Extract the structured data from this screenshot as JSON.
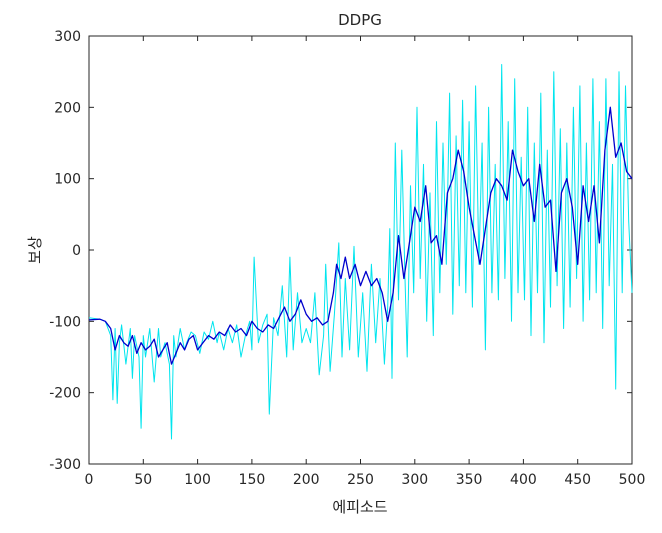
{
  "figure": {
    "title": "DDPG",
    "xlabel": "에피소드",
    "ylabel": "보상"
  },
  "colors": {
    "raw": "#00e5ee",
    "smoothed": "#0000cd",
    "axis": "#262626",
    "background": "#ffffff"
  },
  "chart_data": {
    "type": "line",
    "title": "DDPG",
    "xlabel": "에피소드",
    "ylabel": "보상",
    "xlim": [
      0,
      500
    ],
    "ylim": [
      -300,
      300
    ],
    "xticks": [
      0,
      50,
      100,
      150,
      200,
      250,
      300,
      350,
      400,
      450,
      500
    ],
    "yticks": [
      -300,
      -200,
      -100,
      0,
      100,
      200,
      300
    ],
    "grid": false,
    "legend": "none",
    "series": [
      {
        "role": "raw",
        "color": "#00e5ee",
        "x": [
          0,
          10,
          15,
          20,
          22,
          24,
          26,
          28,
          30,
          34,
          38,
          40,
          42,
          46,
          48,
          50,
          52,
          56,
          60,
          64,
          66,
          70,
          74,
          76,
          78,
          80,
          84,
          88,
          90,
          94,
          98,
          102,
          106,
          110,
          114,
          118,
          120,
          124,
          128,
          132,
          136,
          140,
          144,
          148,
          150,
          152,
          156,
          160,
          164,
          166,
          170,
          174,
          178,
          182,
          185,
          188,
          192,
          196,
          200,
          204,
          208,
          212,
          216,
          218,
          222,
          226,
          230,
          233,
          236,
          240,
          244,
          248,
          252,
          256,
          260,
          264,
          268,
          272,
          275,
          277,
          279,
          282,
          285,
          288,
          291,
          293,
          296,
          299,
          302,
          305,
          308,
          311,
          314,
          317,
          320,
          323,
          326,
          329,
          332,
          335,
          338,
          341,
          344,
          347,
          350,
          353,
          356,
          359,
          362,
          365,
          368,
          371,
          374,
          377,
          380,
          383,
          386,
          389,
          392,
          395,
          398,
          401,
          404,
          407,
          410,
          413,
          416,
          419,
          422,
          425,
          428,
          431,
          434,
          437,
          440,
          443,
          446,
          449,
          452,
          455,
          458,
          461,
          464,
          467,
          470,
          473,
          476,
          479,
          482,
          485,
          488,
          491,
          494,
          497,
          500
        ],
        "values": [
          -95,
          -97,
          -100,
          -120,
          -210,
          -110,
          -215,
          -130,
          -105,
          -160,
          -110,
          -180,
          -120,
          -150,
          -250,
          -120,
          -150,
          -110,
          -185,
          -110,
          -150,
          -130,
          -160,
          -265,
          -120,
          -150,
          -110,
          -140,
          -130,
          -115,
          -120,
          -145,
          -115,
          -125,
          -100,
          -130,
          -115,
          -140,
          -110,
          -130,
          -105,
          -150,
          -120,
          -100,
          -140,
          -10,
          -130,
          -105,
          -90,
          -230,
          -95,
          -120,
          -50,
          -150,
          -10,
          -140,
          -60,
          -130,
          -110,
          -130,
          -60,
          -175,
          -120,
          -20,
          -170,
          -90,
          10,
          -150,
          -40,
          -140,
          5,
          -150,
          -60,
          -170,
          -20,
          -130,
          -40,
          -160,
          -80,
          30,
          -180,
          150,
          -70,
          140,
          -40,
          -150,
          90,
          -60,
          200,
          -40,
          120,
          -100,
          80,
          -120,
          180,
          -60,
          150,
          -20,
          220,
          -90,
          160,
          -50,
          210,
          -60,
          180,
          -80,
          230,
          -20,
          150,
          -140,
          200,
          -60,
          120,
          -70,
          260,
          -40,
          180,
          -100,
          240,
          -60,
          130,
          -70,
          200,
          -120,
          150,
          -60,
          220,
          -130,
          140,
          -80,
          250,
          -50,
          170,
          -110,
          150,
          -80,
          200,
          -40,
          230,
          -100,
          150,
          -70,
          240,
          -60,
          180,
          -110,
          240,
          -50,
          120,
          -195,
          250,
          -60,
          230,
          40,
          -60
        ]
      },
      {
        "role": "smoothed",
        "color": "#0000cd",
        "x": [
          0,
          10,
          15,
          20,
          24,
          28,
          32,
          36,
          40,
          44,
          48,
          52,
          56,
          60,
          64,
          68,
          72,
          76,
          80,
          84,
          88,
          92,
          96,
          100,
          105,
          110,
          115,
          120,
          125,
          130,
          135,
          140,
          145,
          150,
          155,
          160,
          165,
          170,
          175,
          180,
          185,
          190,
          195,
          200,
          205,
          210,
          215,
          220,
          225,
          228,
          232,
          236,
          240,
          245,
          250,
          255,
          260,
          265,
          270,
          275,
          280,
          285,
          290,
          295,
          300,
          305,
          310,
          315,
          320,
          325,
          330,
          335,
          340,
          345,
          350,
          355,
          360,
          365,
          370,
          375,
          380,
          385,
          390,
          395,
          400,
          405,
          410,
          415,
          420,
          425,
          430,
          435,
          440,
          445,
          450,
          455,
          460,
          465,
          470,
          475,
          480,
          485,
          490,
          495,
          500
        ],
        "values": [
          -98,
          -97,
          -100,
          -110,
          -140,
          -120,
          -130,
          -135,
          -120,
          -145,
          -130,
          -140,
          -135,
          -125,
          -150,
          -140,
          -130,
          -160,
          -145,
          -130,
          -140,
          -125,
          -120,
          -140,
          -130,
          -120,
          -125,
          -115,
          -120,
          -105,
          -115,
          -110,
          -120,
          -100,
          -110,
          -115,
          -105,
          -110,
          -95,
          -80,
          -100,
          -90,
          -70,
          -90,
          -100,
          -95,
          -105,
          -100,
          -60,
          -20,
          -40,
          -10,
          -40,
          -20,
          -50,
          -30,
          -50,
          -40,
          -60,
          -100,
          -60,
          20,
          -40,
          10,
          60,
          40,
          90,
          10,
          20,
          -20,
          80,
          100,
          140,
          110,
          60,
          20,
          -20,
          30,
          80,
          100,
          90,
          70,
          140,
          110,
          90,
          100,
          40,
          120,
          60,
          70,
          -30,
          80,
          100,
          60,
          -20,
          90,
          40,
          90,
          10,
          140,
          200,
          130,
          150,
          110,
          100
        ]
      }
    ]
  }
}
